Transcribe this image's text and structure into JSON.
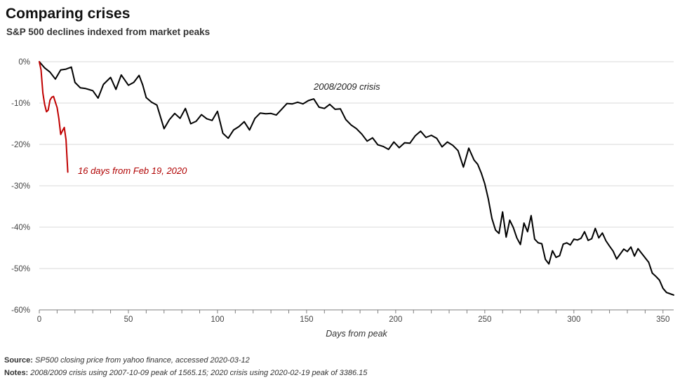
{
  "header": {
    "title": "Comparing crises",
    "subtitle": "S&P 500 declines indexed from market peaks"
  },
  "footer": {
    "source_label": "Source:",
    "source_text": "SP500 closing price from yahoo finance, accessed 2020-03-12",
    "notes_label": "Notes:",
    "notes_text": "2008/2009 crisis using 2007-10-09 peak of 1565.15; 2020 crisis using 2020-02-19 peak of 3386.15"
  },
  "colors": {
    "crisis_2008": "#000000",
    "crisis_2020": "#c00000",
    "grid": "#d9d9d9"
  },
  "chart_data": {
    "type": "line",
    "title": "Comparing crises",
    "subtitle": "S&P 500 declines indexed from market peaks",
    "xlabel": "Days from peak",
    "ylabel": "",
    "xlim": [
      0,
      356
    ],
    "ylim": [
      -60,
      0
    ],
    "x_ticks": [
      0,
      50,
      100,
      150,
      200,
      250,
      300,
      350
    ],
    "y_ticks": [
      0,
      -10,
      -20,
      -30,
      -40,
      -50,
      -60
    ],
    "y_tick_labels": [
      "0%",
      "-10%",
      "-20%",
      "-30%",
      "-40%",
      "-50%",
      "-60%"
    ],
    "grid": "horizontal",
    "legend": "none",
    "series": [
      {
        "name": "2008/2009 crisis",
        "x": [
          0,
          3,
          6,
          9,
          12,
          15,
          18,
          20,
          23,
          26,
          30,
          33,
          36,
          40,
          43,
          46,
          50,
          53,
          56,
          58,
          60,
          63,
          66,
          70,
          73,
          76,
          79,
          82,
          85,
          88,
          91,
          94,
          97,
          100,
          103,
          106,
          109,
          112,
          115,
          118,
          121,
          124,
          127,
          130,
          133,
          136,
          139,
          142,
          145,
          148,
          151,
          154,
          157,
          160,
          163,
          166,
          169,
          172,
          175,
          178,
          181,
          184,
          187,
          190,
          193,
          196,
          199,
          202,
          205,
          208,
          211,
          214,
          217,
          220,
          223,
          226,
          229,
          232,
          235,
          238,
          241,
          244,
          246,
          248,
          250,
          252,
          254,
          256,
          258,
          260,
          262,
          264,
          266,
          268,
          270,
          272,
          274,
          276,
          278,
          280,
          282,
          284,
          286,
          288,
          290,
          292,
          294,
          296,
          298,
          300,
          302,
          304,
          306,
          308,
          310,
          312,
          314,
          316,
          318,
          320,
          322,
          324,
          326,
          328,
          330,
          332,
          334,
          336,
          338,
          340,
          342,
          344,
          346,
          348,
          350,
          352,
          354,
          356
        ],
        "y": [
          0,
          -1.5,
          -2.5,
          -4.2,
          -2,
          -1.8,
          -1.3,
          -5,
          -6.3,
          -6.5,
          -7,
          -8.8,
          -5.5,
          -3.8,
          -6.7,
          -3.2,
          -5.7,
          -5,
          -3.3,
          -5.6,
          -8.7,
          -9.8,
          -10.5,
          -16.2,
          -14,
          -12.5,
          -13.7,
          -11.3,
          -15,
          -14.4,
          -12.8,
          -13.8,
          -14.2,
          -12,
          -17.3,
          -18.5,
          -16.5,
          -15.7,
          -14.5,
          -16.5,
          -13.7,
          -12.4,
          -12.6,
          -12.5,
          -12.9,
          -11.5,
          -10.1,
          -10.2,
          -9.8,
          -10.2,
          -9.4,
          -9,
          -11,
          -11.3,
          -10.3,
          -11.5,
          -11.4,
          -14,
          -15.3,
          -16.2,
          -17.5,
          -19.2,
          -18.4,
          -20.1,
          -20.5,
          -21.2,
          -19.4,
          -20.8,
          -19.6,
          -19.7,
          -17.9,
          -16.8,
          -18.3,
          -17.8,
          -18.5,
          -20.6,
          -19.4,
          -20.2,
          -21.5,
          -25.5,
          -20.9,
          -23.8,
          -24.8,
          -26.9,
          -29.5,
          -33.2,
          -37.9,
          -40.7,
          -41.5,
          -36.3,
          -42.4,
          -38.3,
          -40.1,
          -42.6,
          -44.2,
          -39,
          -41.1,
          -37.2,
          -42.9,
          -43.8,
          -44,
          -47.8,
          -48.9,
          -45.7,
          -47.3,
          -46.9,
          -44.1,
          -43.8,
          -44.3,
          -42.9,
          -43.1,
          -42.7,
          -41.1,
          -43.2,
          -42.8,
          -40.3,
          -42.6,
          -41.4,
          -43.3,
          -44.6,
          -45.8,
          -47.7,
          -46.5,
          -45.3,
          -45.9,
          -44.8,
          -47,
          -45.2,
          -46.3,
          -47.4,
          -48.5,
          -51.1,
          -51.9,
          -52.8,
          -54.8,
          -55.8,
          -56.1,
          -56.4
        ]
      },
      {
        "name": "16 days from Feb 19, 2020",
        "x": [
          0,
          1,
          2,
          3,
          4,
          5,
          6,
          7,
          8,
          9,
          10,
          11,
          12,
          13,
          14,
          15,
          16
        ],
        "y": [
          0,
          -2,
          -7.6,
          -10.3,
          -12.1,
          -11.7,
          -9.3,
          -8.6,
          -8.4,
          -9.8,
          -11.1,
          -13.8,
          -17.6,
          -16.7,
          -15.9,
          -18.9,
          -26.7
        ]
      }
    ],
    "annotations": [
      {
        "text": "2008/2009 crisis",
        "series": 0
      },
      {
        "text": "16 days from Feb 19, 2020",
        "series": 1
      }
    ]
  }
}
